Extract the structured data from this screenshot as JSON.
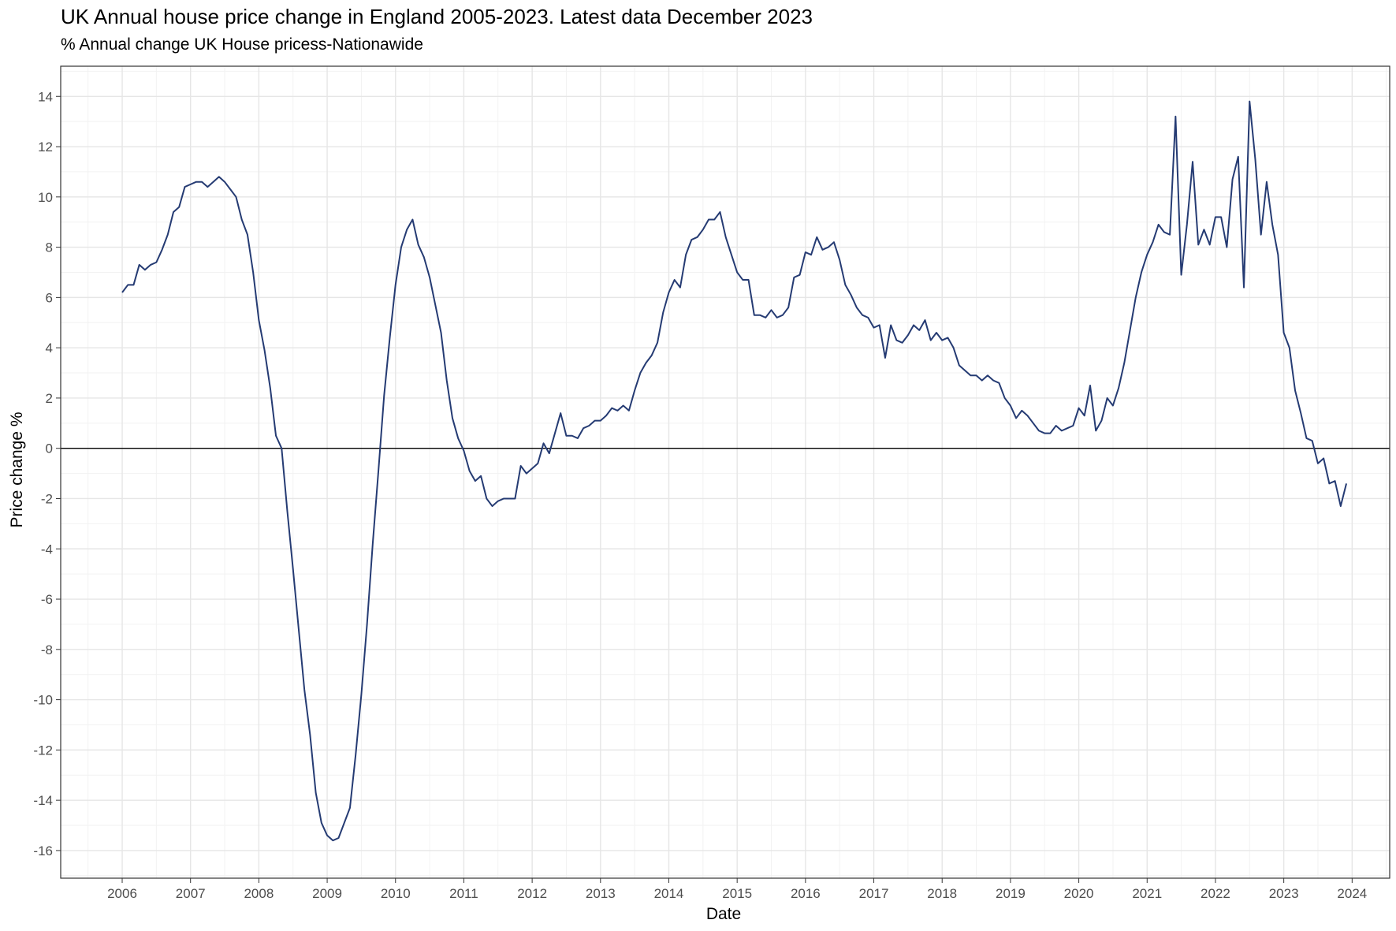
{
  "chart_data": {
    "type": "line",
    "title": "UK Annual house price change in England 2005-2023. Latest data December 2023",
    "subtitle": "% Annual change UK House pricess-Nationawide",
    "xlabel": "Date",
    "ylabel": "Price change %",
    "xlim": [
      2005.1,
      2024.55
    ],
    "ylim": [
      -17.1,
      15.2
    ],
    "x_ticks": [
      2006,
      2007,
      2008,
      2009,
      2010,
      2011,
      2012,
      2013,
      2014,
      2015,
      2016,
      2017,
      2018,
      2019,
      2020,
      2021,
      2022,
      2023,
      2024
    ],
    "y_ticks": [
      14,
      12,
      10,
      8,
      6,
      4,
      2,
      0,
      -2,
      -4,
      -6,
      -8,
      -10,
      -12,
      -14,
      -16
    ],
    "grid": true,
    "reference_line": 0,
    "line_color": "#253b73",
    "series": [
      {
        "name": "Annual house price change",
        "start": 2006.0,
        "step": 0.08333,
        "values": [
          6.2,
          6.5,
          6.5,
          7.3,
          7.1,
          7.3,
          7.4,
          7.9,
          8.5,
          9.4,
          9.6,
          10.4,
          10.5,
          10.6,
          10.6,
          10.4,
          10.6,
          10.8,
          10.6,
          10.3,
          10.0,
          9.1,
          8.5,
          7.0,
          5.1,
          3.9,
          2.4,
          0.5,
          0.0,
          -2.5,
          -4.8,
          -7.2,
          -9.6,
          -11.4,
          -13.7,
          -14.9,
          -15.4,
          -15.6,
          -15.5,
          -14.9,
          -14.3,
          -12.2,
          -9.8,
          -7.0,
          -3.8,
          -0.9,
          2.1,
          4.4,
          6.5,
          8.0,
          8.7,
          9.1,
          8.1,
          7.6,
          6.8,
          5.7,
          4.6,
          2.7,
          1.2,
          0.4,
          -0.1,
          -0.9,
          -1.3,
          -1.1,
          -2.0,
          -2.3,
          -2.1,
          -2.0,
          -2.0,
          -2.0,
          -0.7,
          -1.0,
          -0.8,
          -0.6,
          0.2,
          -0.2,
          0.6,
          1.4,
          0.5,
          0.5,
          0.4,
          0.8,
          0.9,
          1.1,
          1.1,
          1.3,
          1.6,
          1.5,
          1.7,
          1.5,
          2.3,
          3.0,
          3.4,
          3.7,
          4.2,
          5.4,
          6.2,
          6.7,
          6.4,
          7.7,
          8.3,
          8.4,
          8.7,
          9.1,
          9.1,
          9.4,
          8.4,
          7.7,
          7.0,
          6.7,
          6.7,
          5.3,
          5.3,
          5.2,
          5.5,
          5.2,
          5.3,
          5.6,
          6.8,
          6.9,
          7.8,
          7.7,
          8.4,
          7.9,
          8.0,
          8.2,
          7.5,
          6.5,
          6.1,
          5.6,
          5.3,
          5.2,
          4.8,
          4.9,
          3.6,
          4.9,
          4.3,
          4.2,
          4.5,
          4.9,
          4.7,
          5.1,
          4.3,
          4.6,
          4.3,
          4.4,
          4.0,
          3.3,
          3.1,
          2.9,
          2.9,
          2.7,
          2.9,
          2.7,
          2.6,
          2.0,
          1.7,
          1.2,
          1.5,
          1.3,
          1.0,
          0.7,
          0.6,
          0.6,
          0.9,
          0.7,
          0.8,
          0.9,
          1.6,
          1.3,
          2.5,
          0.7,
          1.1,
          2.0,
          1.7,
          2.4,
          3.4,
          4.7,
          6.0,
          7.0,
          7.7,
          8.2,
          8.9,
          8.6,
          8.5,
          13.2,
          6.9,
          8.9,
          11.4,
          8.1,
          8.7,
          8.1,
          9.2,
          9.2,
          8.0,
          10.7,
          11.6,
          6.4,
          13.8,
          11.5,
          8.5,
          10.6,
          8.9,
          7.7,
          4.6,
          4.0,
          2.3,
          1.4,
          0.4,
          0.3,
          -0.6,
          -0.4,
          -1.4,
          -1.3,
          -2.3,
          -1.4
        ]
      }
    ]
  }
}
